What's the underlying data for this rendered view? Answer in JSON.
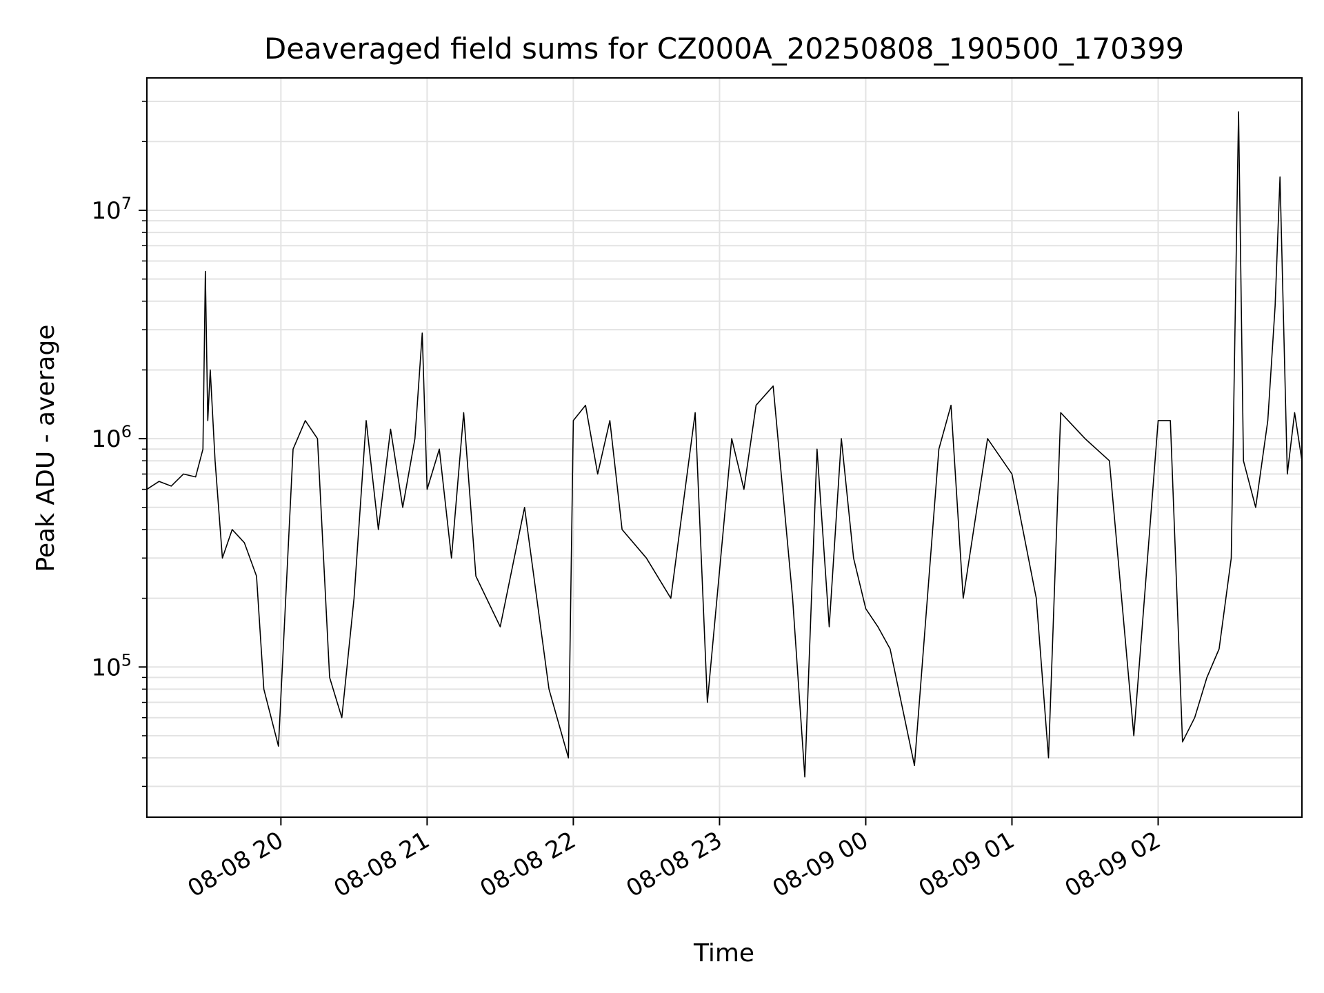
{
  "chart_data": {
    "type": "line",
    "title": "Deaveraged field sums for CZ000A_20250808_190500_170399",
    "xlabel": "Time",
    "ylabel": "Peak ADU - average",
    "y_scale": "log",
    "x_axis_type": "datetime",
    "xlim": [
      "2025-08-08 19:05",
      "2025-08-09 02:59"
    ],
    "ylim": [
      22000,
      38000000
    ],
    "x_ticks": [
      "08-08 20",
      "08-08 21",
      "08-08 22",
      "08-08 23",
      "08-09 00",
      "08-09 01",
      "08-09 02"
    ],
    "x_tick_times": [
      "2025-08-08 20:00",
      "2025-08-08 21:00",
      "2025-08-08 22:00",
      "2025-08-08 23:00",
      "2025-08-09 00:00",
      "2025-08-09 01:00",
      "2025-08-09 02:00"
    ],
    "y_ticks": [
      {
        "base": "10",
        "exp": "5",
        "value": 100000
      },
      {
        "base": "10",
        "exp": "6",
        "value": 1000000
      },
      {
        "base": "10",
        "exp": "7",
        "value": 10000000
      }
    ],
    "grid": true,
    "line_color": "#000000",
    "series": [
      {
        "name": "",
        "points": [
          [
            "2025-08-08 19:05",
            600000
          ],
          [
            "2025-08-08 19:10",
            650000
          ],
          [
            "2025-08-08 19:15",
            620000
          ],
          [
            "2025-08-08 19:20",
            700000
          ],
          [
            "2025-08-08 19:25",
            680000
          ],
          [
            "2025-08-08 19:28",
            900000
          ],
          [
            "2025-08-08 19:29",
            5400000
          ],
          [
            "2025-08-08 19:30",
            1200000
          ],
          [
            "2025-08-08 19:31",
            2000000
          ],
          [
            "2025-08-08 19:33",
            800000
          ],
          [
            "2025-08-08 19:36",
            300000
          ],
          [
            "2025-08-08 19:40",
            400000
          ],
          [
            "2025-08-08 19:45",
            350000
          ],
          [
            "2025-08-08 19:50",
            250000
          ],
          [
            "2025-08-08 19:53",
            80000
          ],
          [
            "2025-08-08 19:56",
            60000
          ],
          [
            "2025-08-08 19:59",
            45000
          ],
          [
            "2025-08-08 20:05",
            900000
          ],
          [
            "2025-08-08 20:10",
            1200000
          ],
          [
            "2025-08-08 20:15",
            1000000
          ],
          [
            "2025-08-08 20:20",
            90000
          ],
          [
            "2025-08-08 20:25",
            60000
          ],
          [
            "2025-08-08 20:30",
            200000
          ],
          [
            "2025-08-08 20:35",
            1200000
          ],
          [
            "2025-08-08 20:40",
            400000
          ],
          [
            "2025-08-08 20:45",
            1100000
          ],
          [
            "2025-08-08 20:50",
            500000
          ],
          [
            "2025-08-08 20:55",
            1000000
          ],
          [
            "2025-08-08 20:58",
            2900000
          ],
          [
            "2025-08-08 21:00",
            600000
          ],
          [
            "2025-08-08 21:05",
            900000
          ],
          [
            "2025-08-08 21:10",
            300000
          ],
          [
            "2025-08-08 21:15",
            1300000
          ],
          [
            "2025-08-08 21:20",
            250000
          ],
          [
            "2025-08-08 21:30",
            150000
          ],
          [
            "2025-08-08 21:40",
            500000
          ],
          [
            "2025-08-08 21:50",
            80000
          ],
          [
            "2025-08-08 21:58",
            40000
          ],
          [
            "2025-08-08 22:00",
            1200000
          ],
          [
            "2025-08-08 22:05",
            1400000
          ],
          [
            "2025-08-08 22:10",
            700000
          ],
          [
            "2025-08-08 22:15",
            1200000
          ],
          [
            "2025-08-08 22:20",
            400000
          ],
          [
            "2025-08-08 22:30",
            300000
          ],
          [
            "2025-08-08 22:40",
            200000
          ],
          [
            "2025-08-08 22:50",
            1300000
          ],
          [
            "2025-08-08 22:55",
            70000
          ],
          [
            "2025-08-08 23:05",
            1000000
          ],
          [
            "2025-08-08 23:10",
            600000
          ],
          [
            "2025-08-08 23:15",
            1400000
          ],
          [
            "2025-08-08 23:22",
            1700000
          ],
          [
            "2025-08-08 23:30",
            200000
          ],
          [
            "2025-08-08 23:35",
            33000
          ],
          [
            "2025-08-08 23:40",
            900000
          ],
          [
            "2025-08-08 23:45",
            150000
          ],
          [
            "2025-08-08 23:50",
            1000000
          ],
          [
            "2025-08-08 23:55",
            300000
          ],
          [
            "2025-08-09 00:00",
            180000
          ],
          [
            "2025-08-09 00:05",
            150000
          ],
          [
            "2025-08-09 00:10",
            120000
          ],
          [
            "2025-08-09 00:20",
            37000
          ],
          [
            "2025-08-09 00:30",
            900000
          ],
          [
            "2025-08-09 00:35",
            1400000
          ],
          [
            "2025-08-09 00:40",
            200000
          ],
          [
            "2025-08-09 00:50",
            1000000
          ],
          [
            "2025-08-09 01:00",
            700000
          ],
          [
            "2025-08-09 01:10",
            200000
          ],
          [
            "2025-08-09 01:15",
            40000
          ],
          [
            "2025-08-09 01:20",
            1300000
          ],
          [
            "2025-08-09 01:30",
            1000000
          ],
          [
            "2025-08-09 01:40",
            800000
          ],
          [
            "2025-08-09 01:50",
            50000
          ],
          [
            "2025-08-09 02:00",
            1200000
          ],
          [
            "2025-08-09 02:05",
            1200000
          ],
          [
            "2025-08-09 02:10",
            47000
          ],
          [
            "2025-08-09 02:15",
            60000
          ],
          [
            "2025-08-09 02:20",
            90000
          ],
          [
            "2025-08-09 02:25",
            120000
          ],
          [
            "2025-08-09 02:30",
            300000
          ],
          [
            "2025-08-09 02:33",
            27000000
          ],
          [
            "2025-08-09 02:35",
            800000
          ],
          [
            "2025-08-09 02:40",
            500000
          ],
          [
            "2025-08-09 02:45",
            1200000
          ],
          [
            "2025-08-09 02:48",
            3800000
          ],
          [
            "2025-08-09 02:50",
            14000000
          ],
          [
            "2025-08-09 02:53",
            700000
          ],
          [
            "2025-08-09 02:56",
            1300000
          ],
          [
            "2025-08-09 02:59",
            800000
          ]
        ]
      }
    ]
  }
}
